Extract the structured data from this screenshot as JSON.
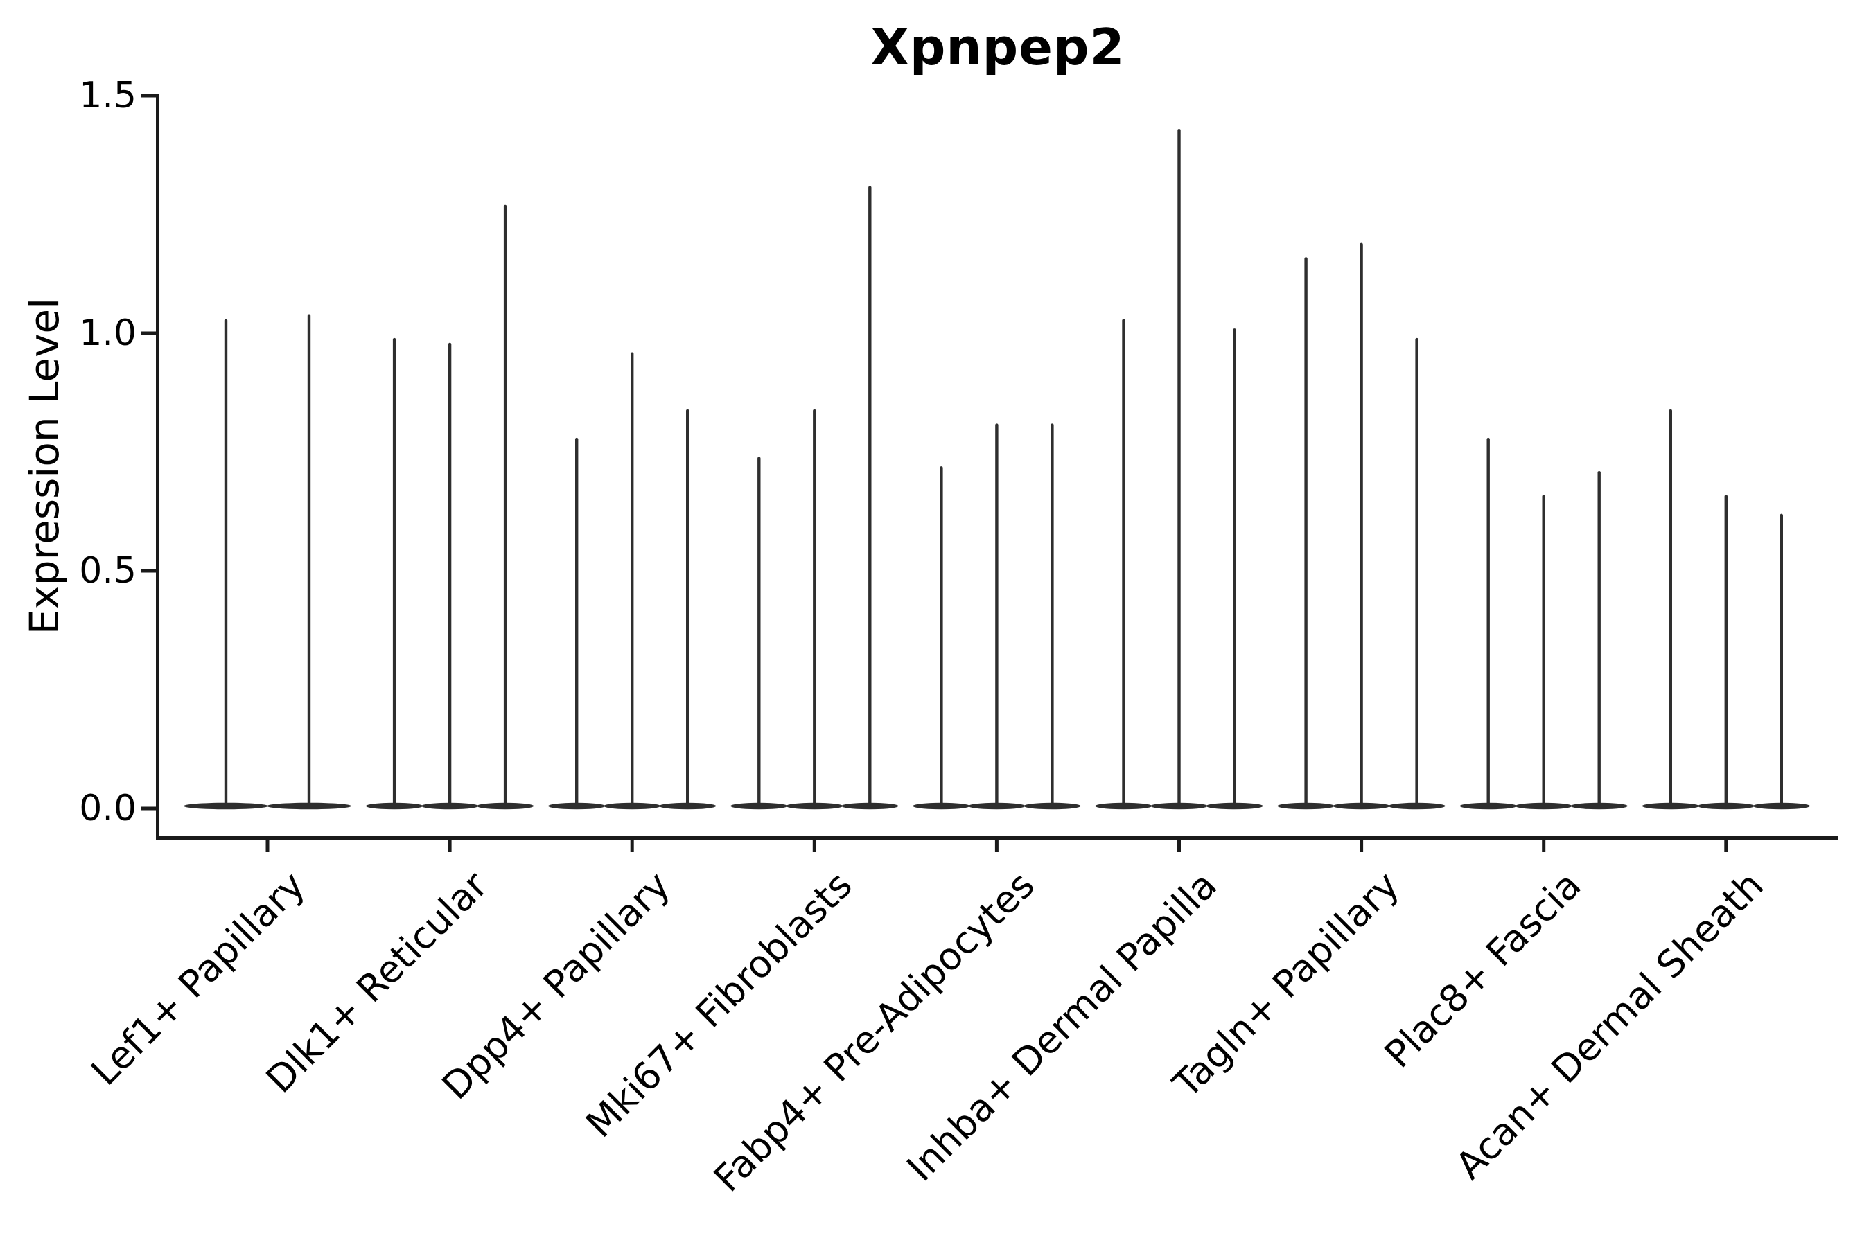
{
  "chart_data": {
    "type": "violin",
    "title": "Xpnpep2",
    "ylabel": "Expression Level",
    "xlabel": "",
    "ylim": [
      -0.06,
      1.51
    ],
    "ytick_labels": [
      "0.0",
      "0.5",
      "1.0",
      "1.5"
    ],
    "ytick_values": [
      0.0,
      0.5,
      1.0,
      1.5
    ],
    "grid": false,
    "legend": "none",
    "colors": {
      "violin": "#2e2e2e",
      "axis": "#1a1a1a",
      "text": "#000000",
      "background": "#ffffff"
    },
    "categories": [
      {
        "label": "Lef1+ Papillary",
        "violin_max_expression": [
          1.03,
          1.04
        ]
      },
      {
        "label": "Dlk1+ Reticular",
        "violin_max_expression": [
          0.99,
          0.98,
          1.27
        ]
      },
      {
        "label": "Dpp4+ Papillary",
        "violin_max_expression": [
          0.78,
          0.96,
          0.84
        ]
      },
      {
        "label": "Mki67+ Fibroblasts",
        "violin_max_expression": [
          0.74,
          0.84,
          1.31
        ]
      },
      {
        "label": "Fabp4+ Pre-Adipocytes",
        "violin_max_expression": [
          0.72,
          0.81,
          0.81
        ]
      },
      {
        "label": "Inhba+ Dermal Papilla",
        "violin_max_expression": [
          1.03,
          1.43,
          1.01
        ]
      },
      {
        "label": "Tagln+ Papillary",
        "violin_max_expression": [
          1.16,
          1.19,
          0.99
        ]
      },
      {
        "label": "Plac8+ Fascia",
        "violin_max_expression": [
          0.78,
          0.66,
          0.71
        ]
      },
      {
        "label": "Acan+ Dermal Sheath",
        "violin_max_expression": [
          0.84,
          0.66,
          0.62
        ]
      }
    ]
  }
}
